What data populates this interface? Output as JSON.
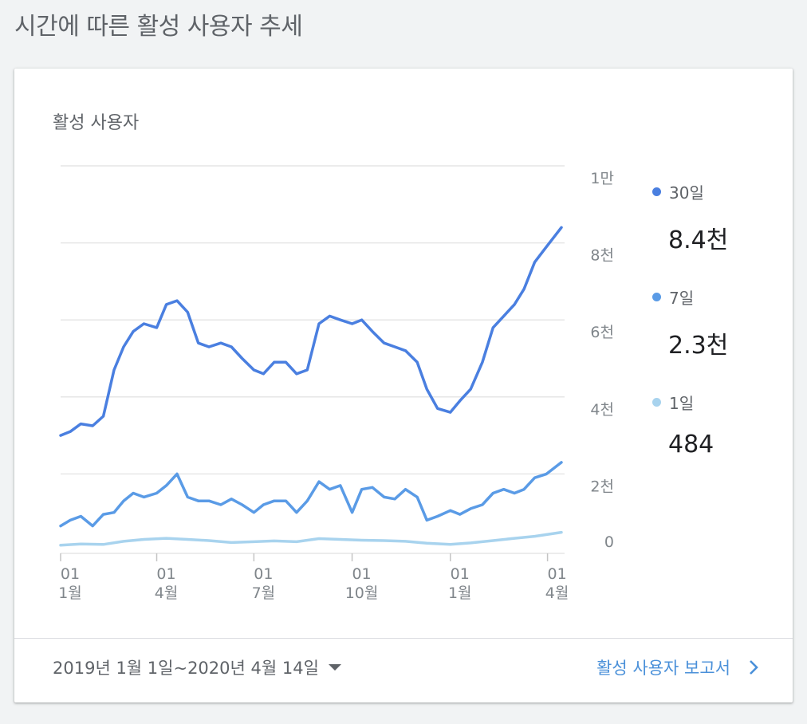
{
  "page": {
    "title": "시간에 따른 활성 사용자 추세"
  },
  "card": {
    "title": "활성 사용자",
    "date_range": "2019년 1월 1일~2020년 4월 14일",
    "report_link": "활성 사용자 보고서"
  },
  "legend": [
    {
      "name": "30일",
      "value": "8.4천",
      "color": "#4a7fe0"
    },
    {
      "name": "7일",
      "value": "2.3천",
      "color": "#5a9be6"
    },
    {
      "name": "1일",
      "value": "484",
      "color": "#a8d3ee"
    }
  ],
  "icons": {
    "date_dropdown": "caret-down-icon",
    "report_link": "chevron-right-icon"
  },
  "chart_data": {
    "type": "line",
    "title": "활성 사용자",
    "x_axis": {
      "start": "2019-01-01",
      "end": "2020-04-14"
    },
    "x_ticks": [
      {
        "date": "2019-01-01",
        "day": "01",
        "month": "1월"
      },
      {
        "date": "2019-04-01",
        "day": "01",
        "month": "4월"
      },
      {
        "date": "2019-07-01",
        "day": "01",
        "month": "7월"
      },
      {
        "date": "2019-10-01",
        "day": "01",
        "month": "10월"
      },
      {
        "date": "2020-01-01",
        "day": "01",
        "month": "1월"
      },
      {
        "date": "2020-04-01",
        "day": "01",
        "month": "4월"
      }
    ],
    "y_ticks": [
      {
        "value": 0,
        "label": "0"
      },
      {
        "value": 2000,
        "label": "2천"
      },
      {
        "value": 4000,
        "label": "4천"
      },
      {
        "value": 6000,
        "label": "6천"
      },
      {
        "value": 8000,
        "label": "8천"
      },
      {
        "value": 10000,
        "label": "1만"
      }
    ],
    "ylim": [
      0,
      10000
    ],
    "grid": true,
    "legend_position": "right",
    "series": [
      {
        "name": "30일",
        "color": "#4a7fe0",
        "points": [
          [
            "2019-01-01",
            3000
          ],
          [
            "2019-01-10",
            3100
          ],
          [
            "2019-01-20",
            3300
          ],
          [
            "2019-01-31",
            3250
          ],
          [
            "2019-02-10",
            3500
          ],
          [
            "2019-02-20",
            4700
          ],
          [
            "2019-03-01",
            5300
          ],
          [
            "2019-03-10",
            5700
          ],
          [
            "2019-03-20",
            5900
          ],
          [
            "2019-04-01",
            5800
          ],
          [
            "2019-04-10",
            6400
          ],
          [
            "2019-04-20",
            6500
          ],
          [
            "2019-04-30",
            6200
          ],
          [
            "2019-05-10",
            5400
          ],
          [
            "2019-05-20",
            5300
          ],
          [
            "2019-05-31",
            5400
          ],
          [
            "2019-06-10",
            5300
          ],
          [
            "2019-06-20",
            5000
          ],
          [
            "2019-07-01",
            4700
          ],
          [
            "2019-07-10",
            4600
          ],
          [
            "2019-07-20",
            4900
          ],
          [
            "2019-07-31",
            4900
          ],
          [
            "2019-08-10",
            4600
          ],
          [
            "2019-08-20",
            4700
          ],
          [
            "2019-08-31",
            5900
          ],
          [
            "2019-09-10",
            6100
          ],
          [
            "2019-09-20",
            6000
          ],
          [
            "2019-10-01",
            5900
          ],
          [
            "2019-10-10",
            6000
          ],
          [
            "2019-10-20",
            5700
          ],
          [
            "2019-10-31",
            5400
          ],
          [
            "2019-11-10",
            5300
          ],
          [
            "2019-11-20",
            5200
          ],
          [
            "2019-12-01",
            4900
          ],
          [
            "2019-12-10",
            4200
          ],
          [
            "2019-12-20",
            3700
          ],
          [
            "2020-01-01",
            3600
          ],
          [
            "2020-01-10",
            3900
          ],
          [
            "2020-01-20",
            4200
          ],
          [
            "2020-01-31",
            4900
          ],
          [
            "2020-02-10",
            5800
          ],
          [
            "2020-02-20",
            6100
          ],
          [
            "2020-03-01",
            6400
          ],
          [
            "2020-03-10",
            6800
          ],
          [
            "2020-03-20",
            7500
          ],
          [
            "2020-03-31",
            7900
          ],
          [
            "2020-04-14",
            8400
          ]
        ]
      },
      {
        "name": "7일",
        "color": "#5a9be6",
        "points": [
          [
            "2019-01-01",
            650
          ],
          [
            "2019-01-10",
            800
          ],
          [
            "2019-01-20",
            900
          ],
          [
            "2019-01-31",
            650
          ],
          [
            "2019-02-10",
            950
          ],
          [
            "2019-02-20",
            1000
          ],
          [
            "2019-03-01",
            1300
          ],
          [
            "2019-03-10",
            1500
          ],
          [
            "2019-03-20",
            1400
          ],
          [
            "2019-04-01",
            1500
          ],
          [
            "2019-04-10",
            1700
          ],
          [
            "2019-04-20",
            2000
          ],
          [
            "2019-04-30",
            1400
          ],
          [
            "2019-05-10",
            1300
          ],
          [
            "2019-05-20",
            1300
          ],
          [
            "2019-05-31",
            1200
          ],
          [
            "2019-06-10",
            1350
          ],
          [
            "2019-06-20",
            1200
          ],
          [
            "2019-07-01",
            1000
          ],
          [
            "2019-07-10",
            1200
          ],
          [
            "2019-07-20",
            1300
          ],
          [
            "2019-07-31",
            1300
          ],
          [
            "2019-08-10",
            1000
          ],
          [
            "2019-08-20",
            1300
          ],
          [
            "2019-08-31",
            1800
          ],
          [
            "2019-09-10",
            1600
          ],
          [
            "2019-09-20",
            1700
          ],
          [
            "2019-10-01",
            1000
          ],
          [
            "2019-10-10",
            1600
          ],
          [
            "2019-10-20",
            1650
          ],
          [
            "2019-10-31",
            1400
          ],
          [
            "2019-11-10",
            1350
          ],
          [
            "2019-11-20",
            1600
          ],
          [
            "2019-12-01",
            1400
          ],
          [
            "2019-12-10",
            800
          ],
          [
            "2019-12-20",
            900
          ],
          [
            "2020-01-01",
            1050
          ],
          [
            "2020-01-10",
            950
          ],
          [
            "2020-01-20",
            1100
          ],
          [
            "2020-01-31",
            1200
          ],
          [
            "2020-02-10",
            1500
          ],
          [
            "2020-02-20",
            1600
          ],
          [
            "2020-03-01",
            1500
          ],
          [
            "2020-03-10",
            1600
          ],
          [
            "2020-03-20",
            1900
          ],
          [
            "2020-03-31",
            2000
          ],
          [
            "2020-04-14",
            2300
          ]
        ]
      },
      {
        "name": "1일",
        "color": "#a8d3ee",
        "points": [
          [
            "2019-01-01",
            150
          ],
          [
            "2019-01-20",
            180
          ],
          [
            "2019-02-10",
            170
          ],
          [
            "2019-03-01",
            250
          ],
          [
            "2019-03-20",
            300
          ],
          [
            "2019-04-10",
            330
          ],
          [
            "2019-04-30",
            300
          ],
          [
            "2019-05-20",
            270
          ],
          [
            "2019-06-10",
            220
          ],
          [
            "2019-07-01",
            240
          ],
          [
            "2019-07-20",
            260
          ],
          [
            "2019-08-10",
            240
          ],
          [
            "2019-08-31",
            320
          ],
          [
            "2019-09-20",
            300
          ],
          [
            "2019-10-10",
            280
          ],
          [
            "2019-10-31",
            270
          ],
          [
            "2019-11-20",
            250
          ],
          [
            "2019-12-10",
            200
          ],
          [
            "2020-01-01",
            170
          ],
          [
            "2020-01-20",
            210
          ],
          [
            "2020-02-10",
            270
          ],
          [
            "2020-03-01",
            330
          ],
          [
            "2020-03-20",
            380
          ],
          [
            "2020-04-14",
            484
          ]
        ]
      }
    ]
  }
}
